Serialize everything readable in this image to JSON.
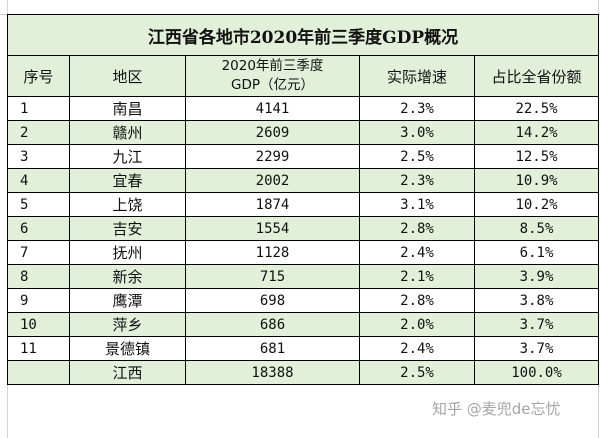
{
  "table": {
    "title": "江西省各地市2020年前三季度GDP概况",
    "headers": {
      "seq": "序号",
      "region": "地区",
      "gdp_line1": "2020年前三季度",
      "gdp_line2": "GDP（亿元）",
      "growth": "实际增速",
      "share": "占比全省份额"
    },
    "rows": [
      {
        "seq": "1",
        "region": "南昌",
        "gdp": "4141",
        "growth": "2.3%",
        "share": "22.5%"
      },
      {
        "seq": "2",
        "region": "赣州",
        "gdp": "2609",
        "growth": "3.0%",
        "share": "14.2%"
      },
      {
        "seq": "3",
        "region": "九江",
        "gdp": "2299",
        "growth": "2.5%",
        "share": "12.5%"
      },
      {
        "seq": "4",
        "region": "宜春",
        "gdp": "2002",
        "growth": "2.3%",
        "share": "10.9%"
      },
      {
        "seq": "5",
        "region": "上饶",
        "gdp": "1874",
        "growth": "3.1%",
        "share": "10.2%"
      },
      {
        "seq": "6",
        "region": "吉安",
        "gdp": "1554",
        "growth": "2.8%",
        "share": "8.5%"
      },
      {
        "seq": "7",
        "region": "抚州",
        "gdp": "1128",
        "growth": "2.4%",
        "share": "6.1%"
      },
      {
        "seq": "8",
        "region": "新余",
        "gdp": "715",
        "growth": "2.1%",
        "share": "3.9%"
      },
      {
        "seq": "9",
        "region": "鹰潭",
        "gdp": "698",
        "growth": "2.8%",
        "share": "3.8%"
      },
      {
        "seq": "10",
        "region": "萍乡",
        "gdp": "686",
        "growth": "2.0%",
        "share": "3.7%"
      },
      {
        "seq": "11",
        "region": "景德镇",
        "gdp": "681",
        "growth": "2.4%",
        "share": "3.7%"
      },
      {
        "seq": "",
        "region": "江西",
        "gdp": "18388",
        "growth": "2.5%",
        "share": "100.0%"
      }
    ]
  },
  "watermark": "知乎 @麦兜de忘忧",
  "colors": {
    "green_band": "#e2efd9",
    "border": "#000000"
  }
}
